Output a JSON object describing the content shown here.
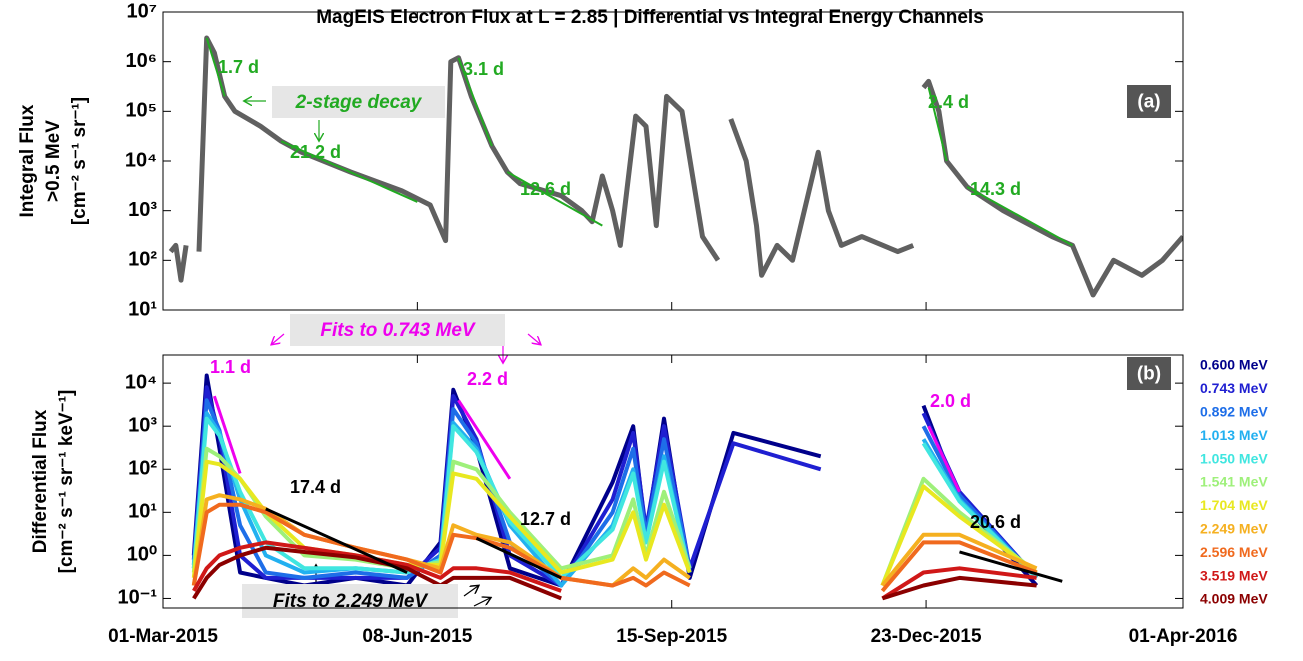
{
  "chart_data": [
    {
      "type": "line",
      "title": "MagEIS Electron Flux at L = 2.85 | Differential vs Integral Energy Channels",
      "ylabel": [
        "Integral Flux",
        ">0.5 MeV",
        "[cm⁻² s⁻¹ sr⁻¹]"
      ],
      "log_y": true,
      "ylim": [
        10,
        10000000
      ],
      "yticks": [
        {
          "value": 10,
          "label": "10¹"
        },
        {
          "value": 100,
          "label": "10²"
        },
        {
          "value": 1000,
          "label": "10³"
        },
        {
          "value": 10000,
          "label": "10⁴"
        },
        {
          "value": 100000,
          "label": "10⁵"
        },
        {
          "value": 1000000,
          "label": "10⁶"
        },
        {
          "value": 10000000,
          "label": "10⁷"
        }
      ],
      "xlim": [
        "2015-03-01",
        "2016-04-01"
      ],
      "x": [
        "2015-03-04",
        "2015-03-06",
        "2015-03-08",
        "2015-03-10",
        "2015-03-12",
        "2015-03-15",
        "2015-03-18",
        "2015-03-21",
        "2015-03-25",
        "2015-03-29",
        "2015-04-08",
        "2015-04-16",
        "2015-04-24",
        "2015-05-13",
        "2015-06-02",
        "2015-06-13",
        "2015-06-19",
        "2015-06-21",
        "2015-06-24",
        "2015-06-29",
        "2015-07-07",
        "2015-07-13",
        "2015-07-18",
        "2015-08-03",
        "2015-08-11",
        "2015-08-15",
        "2015-08-19",
        "2015-08-23",
        "2015-08-26",
        "2015-09-01",
        "2015-09-05",
        "2015-09-09",
        "2015-09-13",
        "2015-09-19",
        "2015-09-27",
        "2015-10-03",
        "2015-10-05",
        "2015-10-08",
        "2015-10-14",
        "2015-10-18",
        "2015-10-20",
        "2015-10-26",
        "2015-11-01",
        "2015-11-07",
        "2015-11-11",
        "2015-11-15",
        "2015-11-20",
        "2015-11-28",
        "2015-12-12",
        "2015-12-18",
        "2015-12-20",
        "2015-12-22",
        "2015-12-24",
        "2015-12-28",
        "2015-12-31",
        "2016-01-08",
        "2016-01-22",
        "2016-02-10",
        "2016-02-18",
        "2016-02-26",
        "2016-03-05",
        "2016-03-16",
        "2016-03-24",
        "2016-04-01"
      ],
      "series": [
        {
          "name": "Integral Flux",
          "color": "#606060",
          "values": [
            150,
            200,
            40,
            200,
            null,
            150,
            3000000,
            1500000,
            200000,
            100000,
            50000,
            25000,
            15000,
            6000,
            2500,
            1300,
            250,
            1000000,
            1200000,
            200000,
            20000,
            6000,
            3500,
            2000,
            1000,
            600,
            5000,
            1000,
            200,
            80000,
            50000,
            500,
            200000,
            100000,
            300,
            100,
            null,
            70000,
            10000,
            500,
            50,
            200,
            100,
            2000,
            15000,
            1000,
            200,
            300,
            150,
            200,
            null,
            300000,
            400000,
            100000,
            10000,
            3000,
            1000,
            300,
            200,
            20,
            100,
            50,
            100,
            300
          ]
        }
      ],
      "fit_color": "#22aa22",
      "fits": [
        {
          "label": "1.7 d",
          "x": [
            "2015-03-18",
            "2015-03-25"
          ],
          "values": [
            3000000,
            200000
          ]
        },
        {
          "label": "21.2 d",
          "x": [
            "2015-04-16",
            "2015-06-08"
          ],
          "values": [
            25000,
            1500
          ]
        },
        {
          "label": "3.1 d",
          "x": [
            "2015-06-24",
            "2015-07-07"
          ],
          "values": [
            1200000,
            20000
          ]
        },
        {
          "label": "12.6 d",
          "x": [
            "2015-07-13",
            "2015-08-19"
          ],
          "values": [
            6000,
            500
          ]
        },
        {
          "label": "2.4 d",
          "x": [
            "2015-12-24",
            "2015-12-31"
          ],
          "values": [
            300000,
            10000
          ]
        },
        {
          "label": "14.3 d",
          "x": [
            "2016-01-08",
            "2016-02-18"
          ],
          "values": [
            3000,
            200
          ]
        }
      ],
      "annotations": [
        "2-stage decay",
        "(a)"
      ]
    },
    {
      "type": "line",
      "ylabel": [
        "Differential Flux",
        "[cm⁻² s⁻¹ sr⁻¹ keV⁻¹]"
      ],
      "log_y": true,
      "ylim": [
        0.06,
        45000
      ],
      "yticks": [
        {
          "value": 0.1,
          "label": "10⁻¹"
        },
        {
          "value": 1,
          "label": "10⁰"
        },
        {
          "value": 10,
          "label": "10¹"
        },
        {
          "value": 100,
          "label": "10²"
        },
        {
          "value": 1000,
          "label": "10³"
        },
        {
          "value": 10000,
          "label": "10⁴"
        }
      ],
      "xlim": [
        "2015-03-01",
        "2016-04-01"
      ],
      "xticks": [
        {
          "value": "2015-03-01",
          "label": "01-Mar-2015"
        },
        {
          "value": "2015-06-08",
          "label": "08-Jun-2015"
        },
        {
          "value": "2015-09-15",
          "label": "15-Sep-2015"
        },
        {
          "value": "2015-12-23",
          "label": "23-Dec-2015"
        },
        {
          "value": "2016-04-01",
          "label": "01-Apr-2016"
        }
      ],
      "x": [
        "2015-03-13",
        "2015-03-18",
        "2015-03-23",
        "2015-03-31",
        "2015-04-10",
        "2015-04-25",
        "2015-05-15",
        "2015-06-04",
        "2015-06-17",
        "2015-06-22",
        "2015-07-01",
        "2015-07-14",
        "2015-08-03",
        "2015-08-23",
        "2015-08-31",
        "2015-09-05",
        "2015-09-12",
        "2015-09-22",
        "2015-10-09",
        "2015-11-12",
        "2015-12-06",
        "2015-12-22",
        "2016-01-05",
        "2016-02-04"
      ],
      "series": [
        {
          "name": "0.600 MeV",
          "color": "#00008b",
          "values": [
            1,
            15000,
            300,
            0.4,
            0.3,
            0.2,
            0.3,
            0.2,
            2,
            7000,
            300,
            0.5,
            0.2,
            50,
            1000,
            3,
            1500,
            0.3,
            700,
            200,
            null,
            3000,
            20,
            0.2
          ]
        },
        {
          "name": "0.743 MeV",
          "color": "#1f1fd1",
          "values": [
            0.8,
            8000,
            600,
            1,
            0.3,
            0.3,
            0.3,
            0.3,
            1.5,
            5000,
            500,
            1,
            0.2,
            20,
            700,
            4,
            1000,
            0.5,
            400,
            100,
            null,
            2000,
            30,
            0.3
          ]
        },
        {
          "name": "0.892 MeV",
          "color": "#1e6ee8",
          "values": [
            0.6,
            4000,
            800,
            5,
            0.4,
            0.3,
            0.4,
            0.3,
            1,
            2500,
            400,
            2,
            0.2,
            10,
            300,
            3,
            500,
            0.5,
            null,
            null,
            null,
            1000,
            25,
            0.3
          ]
        },
        {
          "name": "1.013 MeV",
          "color": "#22b0f0",
          "values": [
            0.5,
            2000,
            700,
            20,
            1,
            0.4,
            0.5,
            0.4,
            0.8,
            1200,
            300,
            5,
            0.2,
            5,
            100,
            2,
            200,
            0.4,
            null,
            null,
            null,
            500,
            20,
            0.3
          ]
        },
        {
          "name": "1.050 MeV",
          "color": "#40e6e0",
          "values": [
            0.5,
            1500,
            600,
            30,
            2,
            0.5,
            0.5,
            0.4,
            0.8,
            1000,
            250,
            6,
            0.3,
            4,
            80,
            2,
            150,
            0.4,
            null,
            null,
            null,
            400,
            18,
            0.3
          ]
        },
        {
          "name": "1.541 MeV",
          "color": "#9ef07a",
          "values": [
            0.4,
            300,
            200,
            60,
            8,
            1,
            0.8,
            0.5,
            0.7,
            150,
            100,
            10,
            0.5,
            1,
            20,
            1,
            30,
            0.5,
            null,
            null,
            0.2,
            60,
            10,
            0.4
          ]
        },
        {
          "name": "1.704 MeV",
          "color": "#e8e820",
          "values": [
            0.3,
            150,
            130,
            60,
            10,
            1.5,
            1,
            0.6,
            0.6,
            80,
            60,
            8,
            0.4,
            0.8,
            10,
            0.8,
            15,
            0.4,
            null,
            null,
            0.2,
            40,
            8,
            0.4
          ]
        },
        {
          "name": "2.249 MeV",
          "color": "#f5b020",
          "values": [
            0.2,
            20,
            25,
            20,
            12,
            3,
            1.5,
            0.8,
            0.5,
            5,
            3,
            2,
            0.3,
            0.2,
            0.5,
            0.3,
            0.8,
            0.3,
            null,
            null,
            0.2,
            3,
            3,
            0.5
          ]
        },
        {
          "name": "2.596 MeV",
          "color": "#f06a1e",
          "values": [
            0.2,
            10,
            15,
            15,
            10,
            3,
            1.5,
            0.8,
            0.4,
            3,
            2.5,
            1.5,
            0.3,
            0.2,
            0.3,
            0.2,
            0.4,
            0.2,
            null,
            null,
            0.15,
            2,
            2,
            0.4
          ]
        },
        {
          "name": "3.519 MeV",
          "color": "#d01818",
          "values": [
            0.15,
            0.5,
            1,
            1.5,
            2,
            1.5,
            1,
            0.6,
            0.3,
            0.5,
            0.5,
            0.4,
            0.15,
            null,
            null,
            null,
            null,
            0.15,
            null,
            null,
            0.1,
            0.4,
            0.5,
            0.3
          ]
        },
        {
          "name": "4.009 MeV",
          "color": "#8b0000",
          "values": [
            0.1,
            0.3,
            0.6,
            1,
            1.5,
            1.2,
            0.9,
            0.5,
            0.2,
            0.3,
            0.3,
            0.3,
            0.1,
            null,
            null,
            null,
            null,
            0.1,
            null,
            null,
            0.1,
            0.2,
            0.3,
            0.2
          ]
        }
      ],
      "fits": [
        {
          "label": "1.1 d",
          "color": "#ee00ee",
          "x": [
            "2015-03-21",
            "2015-03-31"
          ],
          "values": [
            5000,
            80
          ]
        },
        {
          "label": "2.2 d",
          "color": "#ee00ee",
          "x": [
            "2015-06-24",
            "2015-07-14"
          ],
          "values": [
            4000,
            60
          ]
        },
        {
          "label": "2.0 d",
          "color": "#ee00ee",
          "x": [
            "2015-12-24",
            "2016-01-05"
          ],
          "values": [
            1000,
            30
          ]
        },
        {
          "label": "17.4 d",
          "color": "#000000",
          "x": [
            "2015-04-10",
            "2015-06-04"
          ],
          "values": [
            12,
            0.4
          ]
        },
        {
          "label": "12.7 d",
          "color": "#000000",
          "x": [
            "2015-07-01",
            "2015-08-03"
          ],
          "values": [
            2.5,
            0.3
          ]
        },
        {
          "label": "20.6 d",
          "color": "#000000",
          "x": [
            "2016-01-05",
            "2016-02-14"
          ],
          "values": [
            1.2,
            0.25
          ]
        }
      ],
      "annotations": [
        "Fits to 0.743 MeV",
        "Fits to 2.249 MeV",
        "(b)"
      ]
    }
  ]
}
